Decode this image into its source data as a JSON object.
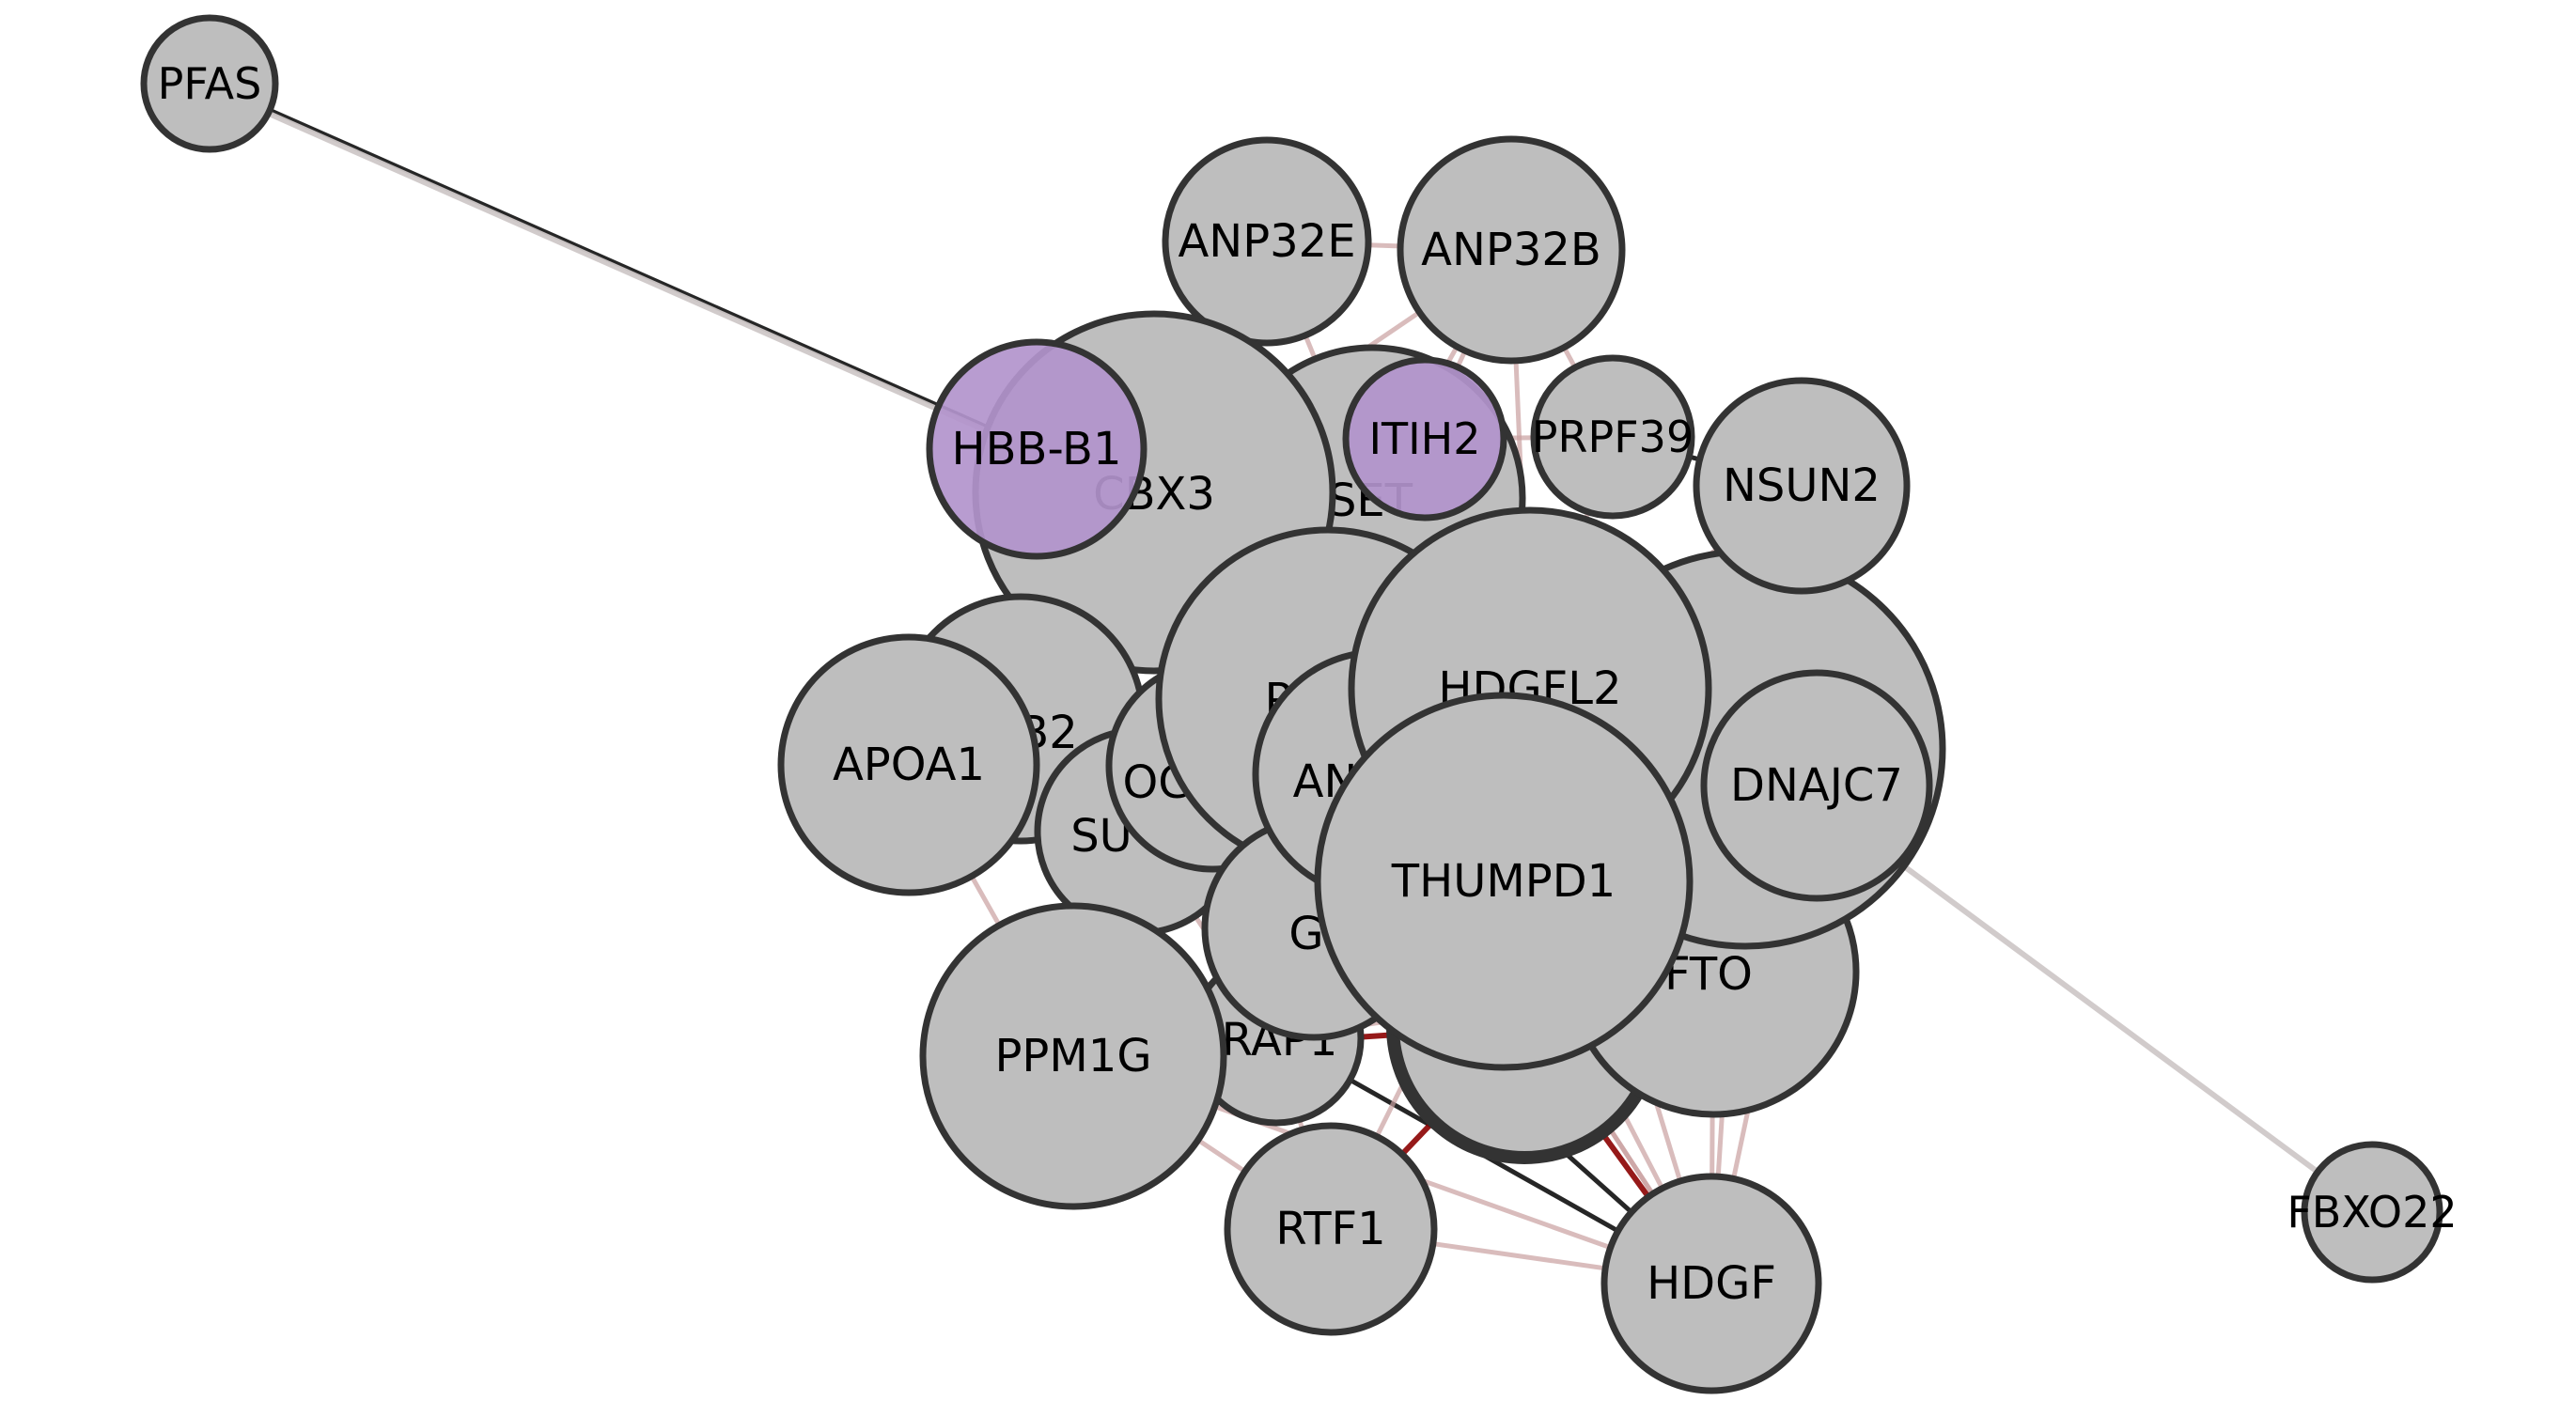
{
  "colors": {
    "node_default": "#bebebe",
    "node_highlight": "#b294cc",
    "node_stroke": "#333333",
    "edge_dark": "#000000",
    "edge_red": "#8b0000",
    "edge_pink": "#c9a0a0",
    "edge_grey": "#cfc8c8"
  },
  "nodes": [
    {
      "id": "PFAS",
      "label": "PFAS",
      "group": "default"
    },
    {
      "id": "FBXO22",
      "label": "FBXO22",
      "group": "default"
    },
    {
      "id": "ANP32E",
      "label": "ANP32E",
      "group": "default"
    },
    {
      "id": "ANP32B",
      "label": "ANP32B",
      "group": "default"
    },
    {
      "id": "SET",
      "label": "SET",
      "group": "default"
    },
    {
      "id": "CBX3",
      "label": "CBX3",
      "group": "default"
    },
    {
      "id": "HBB-B1",
      "label": "HBB-B1",
      "group": "highlight"
    },
    {
      "id": "ITIH2",
      "label": "ITIH2",
      "group": "highlight"
    },
    {
      "id": "PRPF39",
      "label": "PRPF39",
      "group": "default"
    },
    {
      "id": "NSUN2",
      "label": "NSUN2",
      "group": "default"
    },
    {
      "id": "B2",
      "label": "B2",
      "group": "default"
    },
    {
      "id": "APOA1",
      "label": "APOA1",
      "group": "default"
    },
    {
      "id": "SU",
      "label": "SU",
      "group": "default"
    },
    {
      "id": "OG",
      "label": "OG",
      "group": "default"
    },
    {
      "id": "P",
      "label": "P",
      "group": "default"
    },
    {
      "id": "AN",
      "label": "AN",
      "group": "default"
    },
    {
      "id": "BIG",
      "label": "",
      "group": "default"
    },
    {
      "id": "HDGFL2",
      "label": "HDGFL2",
      "group": "default"
    },
    {
      "id": "DNAJC7",
      "label": "DNAJC7",
      "group": "default"
    },
    {
      "id": "G",
      "label": "G",
      "group": "default"
    },
    {
      "id": "DRAP1",
      "label": "DRAP1",
      "group": "default"
    },
    {
      "id": "FTO",
      "label": "FTO",
      "group": "default"
    },
    {
      "id": "BOTTOM",
      "label": "",
      "group": "default"
    },
    {
      "id": "THUMPD1",
      "label": "THUMPD1",
      "group": "default"
    },
    {
      "id": "PPM1G",
      "label": "PPM1G",
      "group": "default"
    },
    {
      "id": "RTF1",
      "label": "RTF1",
      "group": "default"
    },
    {
      "id": "HDGF",
      "label": "HDGF",
      "group": "default"
    }
  ],
  "edges": [
    {
      "source": "PFAS",
      "target": "HBB-B1",
      "style": "dark"
    },
    {
      "source": "PFAS",
      "target": "HBB-B1",
      "style": "grey"
    },
    {
      "source": "FBXO22",
      "target": "BIG",
      "style": "grey"
    },
    {
      "source": "ANP32E",
      "target": "SET",
      "style": "pink"
    },
    {
      "source": "ANP32E",
      "target": "ANP32B",
      "style": "pink"
    },
    {
      "source": "ANP32E",
      "target": "CBX3",
      "style": "pink"
    },
    {
      "source": "ANP32B",
      "target": "SET",
      "style": "pink"
    },
    {
      "source": "ANP32B",
      "target": "ITIH2",
      "style": "pink"
    },
    {
      "source": "ANP32B",
      "target": "PRPF39",
      "style": "pink"
    },
    {
      "source": "ANP32B",
      "target": "CBX3",
      "style": "pink"
    },
    {
      "source": "ANP32B",
      "target": "HDGFL2",
      "style": "pink"
    },
    {
      "source": "PRPF39",
      "target": "NSUN2",
      "style": "dark"
    },
    {
      "source": "PRPF39",
      "target": "HDGFL2",
      "style": "pink"
    },
    {
      "source": "NSUN2",
      "target": "HDGFL2",
      "style": "pink"
    },
    {
      "source": "NSUN2",
      "target": "BIG",
      "style": "grey"
    },
    {
      "source": "NSUN2",
      "target": "THUMPD1",
      "style": "pink"
    },
    {
      "source": "CBX3",
      "target": "OG",
      "style": "dark"
    },
    {
      "source": "CBX3",
      "target": "B2",
      "style": "pink"
    },
    {
      "source": "CBX3",
      "target": "SET",
      "style": "pink"
    },
    {
      "source": "HBB-B1",
      "target": "B2",
      "style": "pink"
    },
    {
      "source": "APOA1",
      "target": "SU",
      "style": "dark"
    },
    {
      "source": "APOA1",
      "target": "PPM1G",
      "style": "pink"
    },
    {
      "source": "APOA1",
      "target": "OG",
      "style": "pink"
    },
    {
      "source": "SU",
      "target": "PPM1G",
      "style": "red"
    },
    {
      "source": "SU",
      "target": "DRAP1",
      "style": "pink"
    },
    {
      "source": "SU",
      "target": "G",
      "style": "pink"
    },
    {
      "source": "PPM1G",
      "target": "DRAP1",
      "style": "dark"
    },
    {
      "source": "PPM1G",
      "target": "RTF1",
      "style": "pink"
    },
    {
      "source": "PPM1G",
      "target": "HDGF",
      "style": "pink"
    },
    {
      "source": "PPM1G",
      "target": "G",
      "style": "pink"
    },
    {
      "source": "DRAP1",
      "target": "HDGF",
      "style": "dark"
    },
    {
      "source": "DRAP1",
      "target": "RTF1",
      "style": "pink"
    },
    {
      "source": "RTF1",
      "target": "HDGF",
      "style": "pink"
    },
    {
      "source": "RTF1",
      "target": "THUMPD1",
      "style": "pink"
    },
    {
      "source": "RTF1",
      "target": "BOTTOM",
      "style": "red"
    },
    {
      "source": "G",
      "target": "HDGF",
      "style": "dark"
    },
    {
      "source": "BOTTOM",
      "target": "HDGF",
      "style": "red"
    },
    {
      "source": "THUMPD1",
      "target": "HDGF",
      "style": "pink"
    },
    {
      "source": "FTO",
      "target": "HDGF",
      "style": "pink"
    },
    {
      "source": "BIG",
      "target": "HDGF",
      "style": "pink"
    },
    {
      "source": "DNAJC7",
      "target": "HDGF",
      "style": "pink"
    },
    {
      "source": "HDGFL2",
      "target": "HDGF",
      "style": "pink"
    },
    {
      "source": "P",
      "target": "HDGF",
      "style": "pink"
    },
    {
      "source": "AN",
      "target": "HDGF",
      "style": "pink"
    },
    {
      "source": "PPM1G",
      "target": "BOTTOM",
      "style": "red"
    },
    {
      "source": "DRAP1",
      "target": "FTO",
      "style": "pink"
    },
    {
      "source": "ITIH2",
      "target": "PRPF39",
      "style": "pink"
    }
  ]
}
